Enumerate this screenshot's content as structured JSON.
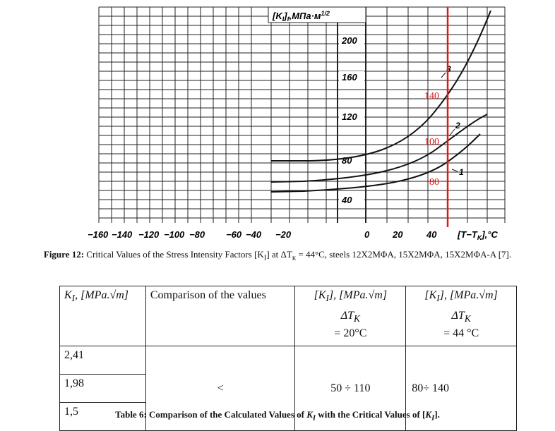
{
  "figure": {
    "y_axis_title": "[K",
    "y_axis_title_sub": "I",
    "y_axis_title_rest": "]",
    "y_axis_title_f": "f",
    "y_axis_title_unit": ",МПа·м",
    "y_axis_title_exp": "1/2",
    "y_ticks": [
      "200",
      "160",
      "120",
      "80",
      "40"
    ],
    "x_ticks": [
      "−160",
      "−140",
      "−120",
      "−100",
      "−80",
      "−60",
      "−40",
      "−20",
      "0",
      "20",
      "40"
    ],
    "x_axis_title": "[T−T",
    "x_axis_title_sub": "K",
    "x_axis_title_rest": "],°C",
    "red_labels": [
      "140",
      "100",
      "80"
    ],
    "curve_labels": [
      "3",
      "2",
      "1"
    ],
    "colors": {
      "marker": "#e01818",
      "ink": "#111111"
    }
  },
  "figure_caption": {
    "label": "Figure 12:",
    "text": "Critical Values of the Stress Intensity Factors [K",
    "sub": "I",
    "text2": "] at ΔT",
    "sub2": "к",
    "text3": " = 44°C, steels 12X2MΦA, 15X2MΦA, 15X2MΦA-A [7]."
  },
  "table": {
    "headers": {
      "col1": "K",
      "col1_sub": "I",
      "col1_unit": ", [MPa.√m]",
      "col2": "Comparison of the values",
      "col3_line1": "[K",
      "col3_sub": "I",
      "col3_unit": "], [MPa.√m]",
      "col3_line2": "ΔT",
      "col3_sub2": "K",
      "col3_line2_rest": " = 20°C",
      "col4_line1": "[K",
      "col4_sub": "I",
      "col4_unit": "], [MPa.√m]",
      "col4_line2": "ΔT",
      "col4_sub2": "K",
      "col4_line2_rest": " = 44 °C"
    },
    "k_values": [
      "2,41",
      "1,98",
      "1,5"
    ],
    "comparison": "<",
    "range_20": "50 ÷ 110",
    "range_44": "80÷ 140"
  },
  "table_caption": {
    "label": "Table 6:",
    "text": " Comparison of the Calculated Values of ",
    "k": "K",
    "k_sub": "I",
    "text2": " with the Critical Values of [",
    "k2": "K",
    "k2_sub": "I",
    "text3": "]."
  }
}
